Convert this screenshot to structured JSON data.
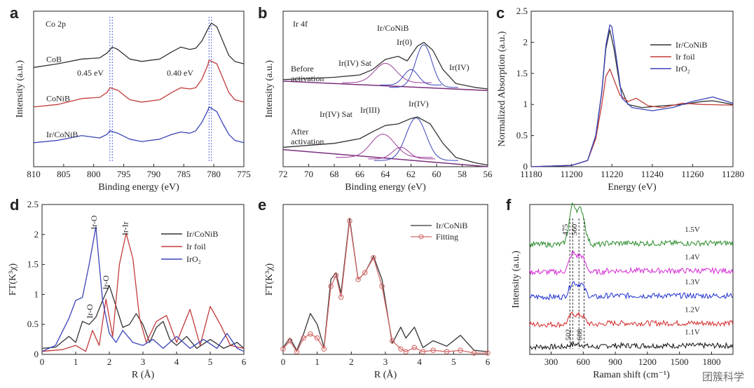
{
  "watermark": "团簇科学",
  "panels": {
    "a": {
      "label": "a",
      "corner_text": "Co 2p",
      "annotations": [
        "0.45 eV",
        "0.40 eV"
      ]
    },
    "b": {
      "label": "b",
      "corner_text": "Ir 4f",
      "annotations": [
        "Ir/CoNiB",
        "Ir(0)",
        "Ir(IV) Sat",
        "Ir(IV)",
        "Before",
        "activation",
        "Ir(IV) Sat",
        "Ir(III)",
        "Ir(IV)",
        "After",
        "activation"
      ]
    },
    "c": {
      "label": "c"
    },
    "d": {
      "label": "d",
      "annotations": [
        "Ir-O",
        "Ir-Ir",
        "Ir-O",
        "Ir-O"
      ]
    },
    "e": {
      "label": "e"
    },
    "f": {
      "label": "f",
      "annotations": [
        "475",
        "560",
        "502",
        "608"
      ]
    }
  },
  "chart_data": [
    {
      "panel": "a",
      "type": "line",
      "xlabel": "Binding energy (eV)",
      "ylabel": "Intensity (a.u.)",
      "xlim": [
        810,
        775
      ],
      "ylim": [
        0,
        1.3
      ],
      "xticks": [
        810,
        805,
        800,
        795,
        790,
        785,
        780,
        775
      ],
      "vlines": [
        797.3,
        796.9,
        780.8,
        780.4
      ],
      "series": [
        {
          "name": "CoB",
          "color": "#333333",
          "x": [
            810,
            806,
            802,
            799,
            797.8,
            796.9,
            796,
            794,
            792,
            789,
            787,
            785.5,
            784,
            783,
            782,
            781,
            780.4,
            779.5,
            778.5,
            777.5,
            776.5,
            775
          ],
          "y": [
            0.83,
            0.86,
            0.9,
            0.91,
            0.95,
            1.0,
            0.98,
            0.9,
            0.88,
            0.9,
            0.96,
            1.0,
            0.98,
            0.99,
            1.05,
            1.15,
            1.2,
            1.17,
            1.05,
            0.93,
            0.88,
            0.86
          ]
        },
        {
          "name": "CoNiB",
          "color": "#c23b3b",
          "x": [
            810,
            806,
            802,
            799,
            797.8,
            797.3,
            796,
            794,
            792,
            789,
            787,
            785.5,
            784,
            783,
            782,
            781,
            780.8,
            779.5,
            778.5,
            777.5,
            776.5,
            775
          ],
          "y": [
            0.5,
            0.52,
            0.57,
            0.58,
            0.62,
            0.66,
            0.64,
            0.56,
            0.54,
            0.56,
            0.62,
            0.66,
            0.65,
            0.66,
            0.73,
            0.85,
            0.89,
            0.86,
            0.74,
            0.62,
            0.56,
            0.54
          ]
        },
        {
          "name": "Ir/CoNiB",
          "color": "#3a44b8",
          "x": [
            810,
            806,
            802,
            799,
            797.8,
            797.3,
            796,
            794,
            792,
            789,
            787,
            785.5,
            784,
            783,
            782,
            781,
            780.8,
            779.5,
            778.5,
            777.5,
            776.5,
            775
          ],
          "y": [
            0.2,
            0.22,
            0.26,
            0.24,
            0.27,
            0.3,
            0.28,
            0.23,
            0.21,
            0.23,
            0.27,
            0.29,
            0.28,
            0.3,
            0.37,
            0.47,
            0.5,
            0.46,
            0.36,
            0.27,
            0.22,
            0.2
          ]
        }
      ],
      "labels": [
        "CoB",
        "CoNiB",
        "Ir/CoNiB"
      ]
    },
    {
      "panel": "b",
      "type": "line",
      "xlabel": "Binding energy (eV)",
      "ylabel": "Intensity (a.u.)",
      "xlim": [
        72,
        56
      ],
      "ylim": [
        0,
        2.0
      ],
      "xticks": [
        72,
        70,
        68,
        66,
        64,
        62,
        60,
        58,
        56
      ],
      "series": [
        {
          "name": "Before activation",
          "color": "#333333",
          "x": [
            72,
            68,
            66,
            65,
            64,
            63,
            62.3,
            61.5,
            61,
            60.3,
            59.5,
            58.5,
            57,
            56
          ],
          "y": [
            1.12,
            1.15,
            1.18,
            1.25,
            1.38,
            1.42,
            1.36,
            1.55,
            1.6,
            1.5,
            1.25,
            1.07,
            1.02,
            1.0
          ]
        },
        {
          "name": "After activation",
          "color": "#333333",
          "x": [
            72,
            68,
            66,
            65,
            64,
            63,
            62,
            61.5,
            60.5,
            59.5,
            58.5,
            57,
            56
          ],
          "y": [
            0.25,
            0.3,
            0.36,
            0.45,
            0.53,
            0.55,
            0.62,
            0.64,
            0.55,
            0.3,
            0.12,
            0.05,
            0.02
          ]
        }
      ]
    },
    {
      "panel": "c",
      "type": "line",
      "xlabel": "Energy (eV)",
      "ylabel": "Normalized Absorption (a.u.)",
      "xlim": [
        11180,
        11280
      ],
      "ylim": [
        0,
        2.5
      ],
      "xticks": [
        11180,
        11200,
        11220,
        11240,
        11260,
        11280
      ],
      "yticks": [
        0,
        0.5,
        1.0,
        1.5,
        2.0,
        2.5
      ],
      "legend_position": "top-right",
      "series": [
        {
          "name": "Ir/CoNiB",
          "color": "#333333",
          "x": [
            11180,
            11200,
            11208,
            11212,
            11215,
            11217,
            11219,
            11221,
            11224,
            11228,
            11235,
            11245,
            11255,
            11265,
            11270,
            11280
          ],
          "y": [
            0,
            0.02,
            0.1,
            0.5,
            1.2,
            1.9,
            2.2,
            1.9,
            1.3,
            1.0,
            0.95,
            0.98,
            1.0,
            1.05,
            1.06,
            1.0
          ]
        },
        {
          "name": "Ir foil",
          "color": "#c23b3b",
          "x": [
            11180,
            11200,
            11208,
            11212,
            11215,
            11217,
            11219,
            11221,
            11224,
            11228,
            11232,
            11238,
            11245,
            11255,
            11265,
            11280
          ],
          "y": [
            0,
            0.02,
            0.1,
            0.45,
            1.0,
            1.45,
            1.57,
            1.4,
            1.15,
            1.05,
            1.1,
            0.98,
            0.95,
            1.02,
            1.0,
            0.99
          ]
        },
        {
          "name": "IrO₂",
          "color": "#3a44b8",
          "x": [
            11180,
            11200,
            11208,
            11212,
            11215,
            11217,
            11219,
            11220,
            11222,
            11225,
            11230,
            11240,
            11250,
            11260,
            11270,
            11280
          ],
          "y": [
            0,
            0.02,
            0.1,
            0.5,
            1.2,
            1.95,
            2.28,
            2.25,
            1.8,
            1.1,
            0.95,
            0.9,
            0.95,
            1.05,
            1.12,
            1.02
          ]
        }
      ]
    },
    {
      "panel": "d",
      "type": "line",
      "xlabel": "R (Å)",
      "ylabel": "FT(K³χ)",
      "xlim": [
        0,
        6
      ],
      "ylim": [
        0,
        2.5
      ],
      "xticks": [
        0,
        1,
        2,
        3,
        4,
        5,
        6
      ],
      "yticks": [
        0,
        0.5,
        1.0,
        1.5,
        2.0,
        2.5
      ],
      "legend_position": "top-right",
      "series": [
        {
          "name": "Ir/CoNiB",
          "color": "#333333",
          "x": [
            0,
            0.4,
            0.8,
            1.0,
            1.2,
            1.4,
            1.6,
            1.8,
            2.0,
            2.2,
            2.4,
            2.6,
            2.8,
            3.0,
            3.2,
            3.4,
            3.6,
            3.8,
            4.0,
            4.3,
            4.6,
            5.0,
            5.4,
            5.8,
            6.0
          ],
          "y": [
            0.1,
            0.12,
            0.3,
            0.2,
            0.55,
            0.5,
            0.62,
            0.9,
            1.15,
            0.8,
            0.45,
            0.5,
            0.68,
            0.5,
            0.2,
            0.45,
            0.55,
            0.25,
            0.15,
            0.3,
            0.1,
            0.25,
            0.1,
            0.2,
            0.1
          ]
        },
        {
          "name": "Ir foil",
          "color": "#c23b3b",
          "x": [
            0,
            0.6,
            1.0,
            1.3,
            1.5,
            1.7,
            1.9,
            2.1,
            2.3,
            2.5,
            2.7,
            2.9,
            3.1,
            3.4,
            3.7,
            4.0,
            4.4,
            4.7,
            5.0,
            5.3,
            5.6,
            6.0
          ],
          "y": [
            0.05,
            0.08,
            0.15,
            0.05,
            0.4,
            0.15,
            0.92,
            0.3,
            1.5,
            2.02,
            1.6,
            0.6,
            0.2,
            0.55,
            0.65,
            0.2,
            0.75,
            0.15,
            0.8,
            0.5,
            0.15,
            0.1
          ]
        },
        {
          "name": "IrO₂",
          "color": "#3a44b8",
          "x": [
            0,
            0.4,
            0.8,
            1.0,
            1.2,
            1.4,
            1.6,
            1.8,
            2.0,
            2.2,
            2.4,
            2.7,
            3.0,
            3.3,
            3.6,
            4.0,
            4.4,
            4.8,
            5.2,
            5.5,
            5.8,
            6.0
          ],
          "y": [
            0.05,
            0.15,
            0.6,
            0.9,
            0.95,
            1.5,
            2.12,
            0.9,
            0.35,
            0.2,
            0.4,
            0.2,
            0.15,
            0.25,
            0.1,
            0.3,
            0.1,
            0.25,
            0.1,
            0.35,
            0.1,
            0.05
          ]
        }
      ],
      "peak_labels": [
        "Ir-O",
        "Ir-Ir",
        "Ir-O",
        "Ir-O"
      ]
    },
    {
      "panel": "e",
      "type": "line",
      "xlabel": "R (Å)",
      "ylabel": "FT(K³χ)",
      "xlim": [
        0,
        6
      ],
      "xticks": [
        0,
        1,
        2,
        3,
        4,
        5,
        6
      ],
      "legend_position": "top-right",
      "series": [
        {
          "name": "Ir/CoNiB",
          "color": "#333333",
          "x": [
            0,
            0.2,
            0.4,
            0.6,
            0.8,
            1.0,
            1.2,
            1.4,
            1.55,
            1.7,
            1.95,
            2.2,
            2.4,
            2.65,
            2.9,
            3.2,
            3.45,
            3.6,
            3.85,
            4.1,
            4.4,
            4.8,
            5.2,
            5.6,
            6.0
          ],
          "y": [
            0.05,
            0.12,
            0.03,
            0.15,
            0.3,
            0.22,
            0.05,
            0.55,
            0.6,
            0.45,
            1.0,
            0.55,
            0.6,
            0.72,
            0.55,
            0.08,
            0.2,
            0.12,
            0.2,
            0.05,
            0.1,
            0.06,
            0.14,
            0.03,
            0.02
          ]
        },
        {
          "name": "Fitting",
          "color": "#d46a6a",
          "markers": true,
          "x": [
            0,
            0.2,
            0.4,
            0.6,
            0.8,
            1.0,
            1.2,
            1.4,
            1.55,
            1.7,
            1.95,
            2.2,
            2.4,
            2.65,
            2.9,
            3.2,
            3.45,
            3.6,
            3.85,
            4.1,
            4.4,
            4.8,
            5.2,
            5.6,
            6.0
          ],
          "y": [
            0.04,
            0.1,
            0.02,
            0.12,
            0.15,
            0.12,
            0.04,
            0.5,
            0.58,
            0.42,
            0.98,
            0.55,
            0.6,
            0.71,
            0.5,
            0.1,
            0.04,
            0.02,
            0.05,
            0.02,
            0.03,
            0.02,
            0.03,
            0.01,
            0.01
          ]
        }
      ]
    },
    {
      "panel": "f",
      "type": "line",
      "xlabel": "Raman shift (cm⁻¹)",
      "ylabel": "Intensity (a.u.)",
      "xlim": [
        100,
        2000
      ],
      "ylim": [
        0,
        6
      ],
      "xticks": [
        300,
        600,
        900,
        1200,
        1500,
        1800
      ],
      "vlines": [
        475,
        502,
        560,
        608
      ],
      "series": [
        {
          "name": "1.1V",
          "color": "#111111",
          "base": 0.3,
          "peak": 0.1
        },
        {
          "name": "1.2V",
          "color": "#d42a2a",
          "base": 1.2,
          "peak": 0.4
        },
        {
          "name": "1.3V",
          "color": "#1f2fd0",
          "base": 2.3,
          "peak": 0.55
        },
        {
          "name": "1.4V",
          "color": "#d42ad4",
          "base": 3.3,
          "peak": 0.7
        },
        {
          "name": "1.5V",
          "color": "#2a8a2a",
          "base": 4.4,
          "peak": 1.5
        }
      ]
    }
  ]
}
